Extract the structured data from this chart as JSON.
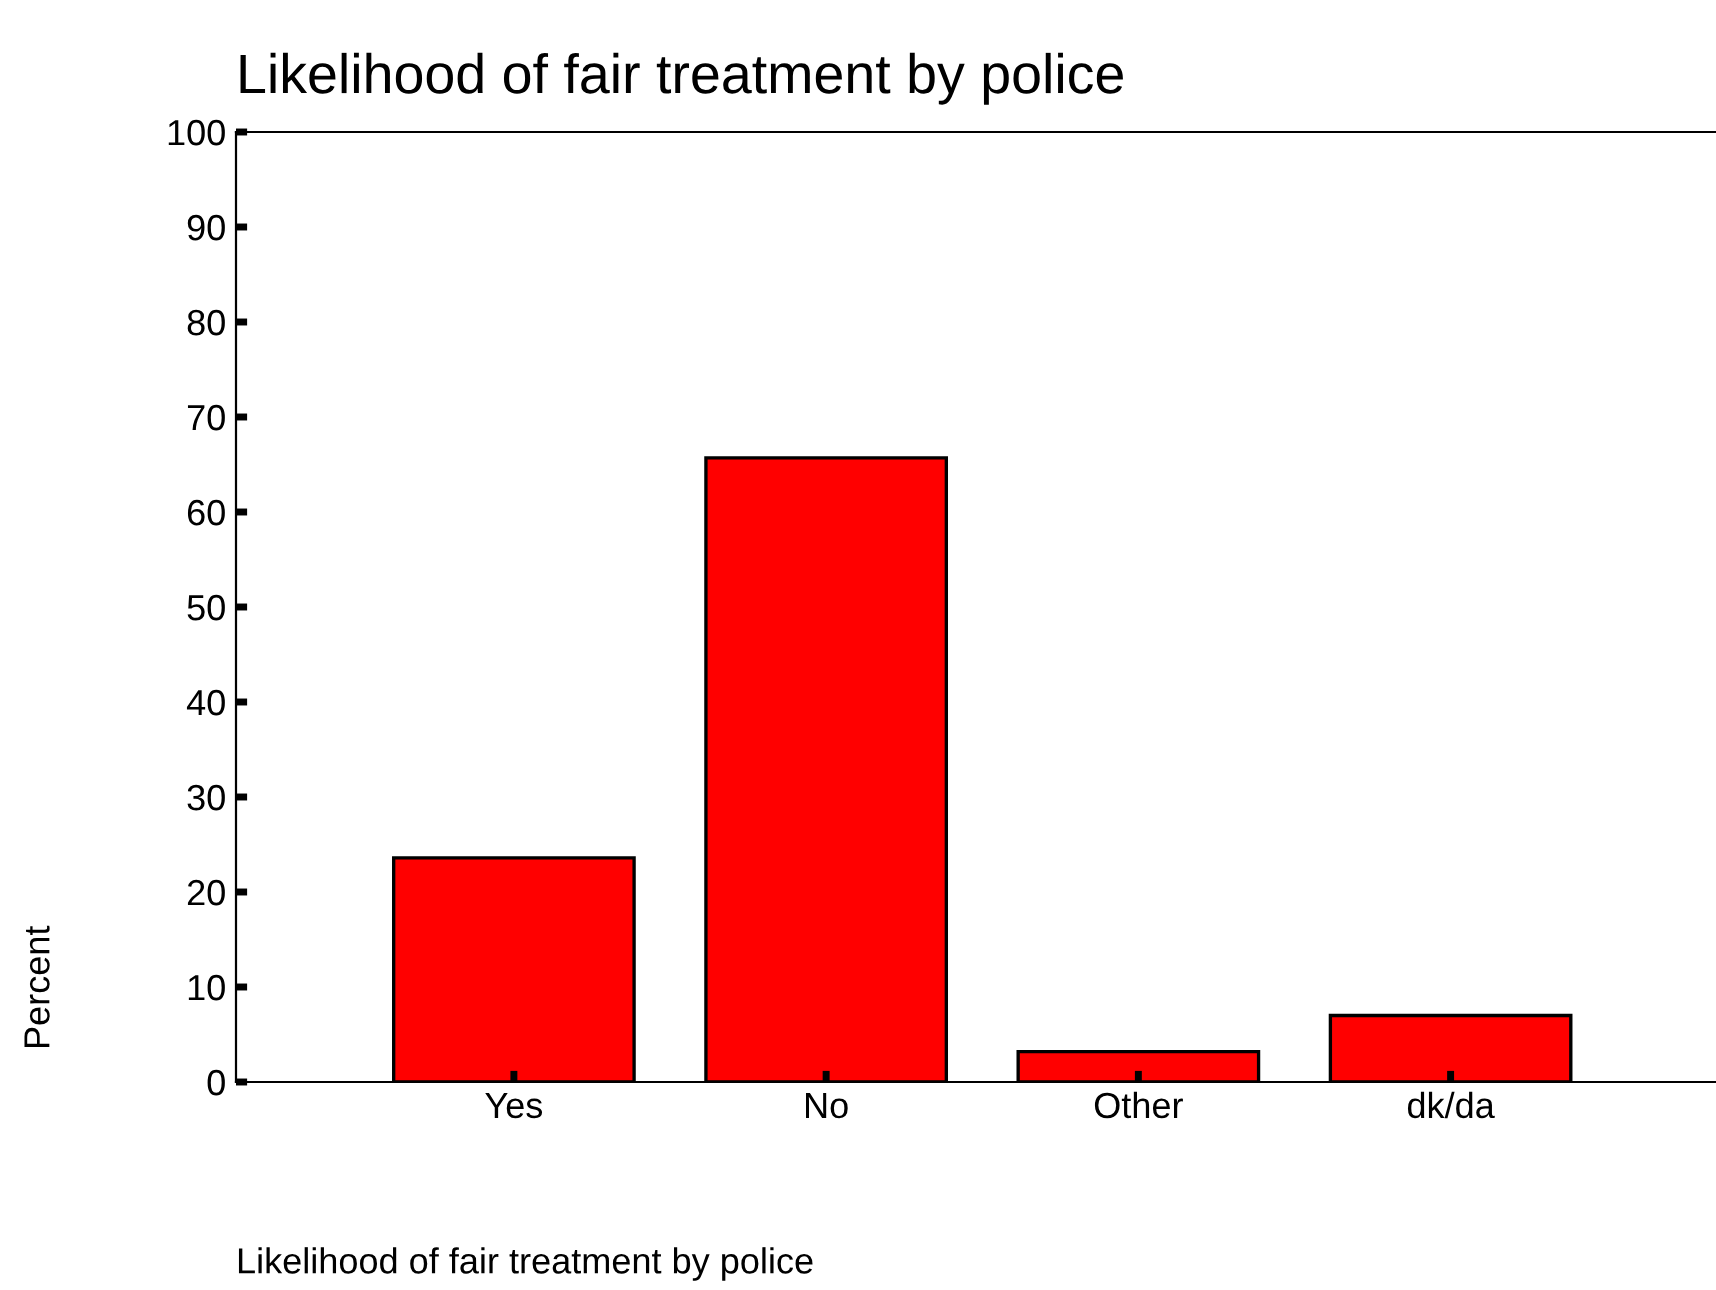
{
  "chart_data": {
    "type": "bar",
    "title": "Likelihood of fair treatment by police",
    "xlabel": "Likelihood of fair treatment by police",
    "ylabel": "Percent",
    "categories": [
      "Yes",
      "No",
      "Other",
      "dk/da"
    ],
    "values": [
      23.6,
      65.7,
      3.2,
      7.0
    ],
    "color": "#ff0000",
    "ylim": [
      0,
      100
    ],
    "yticks": [
      0,
      10,
      20,
      30,
      40,
      50,
      60,
      70,
      80,
      90,
      100
    ],
    "grid": false,
    "legend": false
  }
}
